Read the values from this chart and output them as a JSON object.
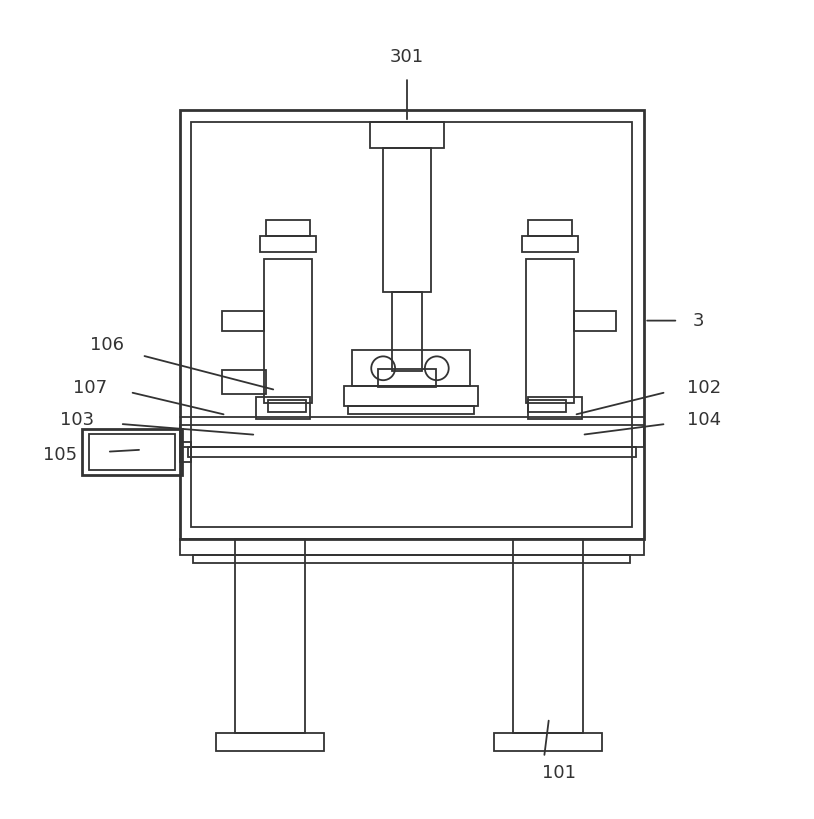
{
  "bg_color": "#ffffff",
  "line_color": "#333333",
  "lw": 1.3,
  "lw_thick": 2.0,
  "fig_width": 8.14,
  "fig_height": 8.19
}
